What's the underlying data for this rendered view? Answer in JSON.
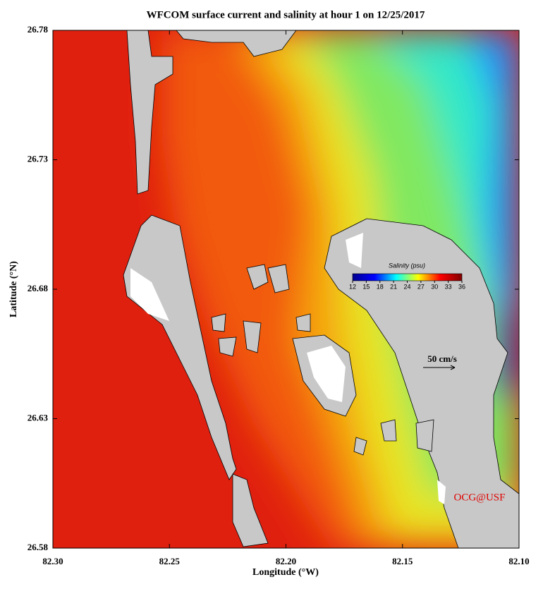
{
  "chart_data": {
    "type": "map",
    "title": "WFCOM surface current and salinity at hour 1 on 12/25/2017",
    "x_label": "Longitude (°W)",
    "y_label": "Latitude (°N)",
    "xlim": [
      82.3,
      82.1
    ],
    "xticks": [
      {
        "value": 82.3,
        "label": "82.30"
      },
      {
        "value": 82.25,
        "label": "82.25"
      },
      {
        "value": 82.2,
        "label": "82.20"
      },
      {
        "value": 82.15,
        "label": "82.15"
      },
      {
        "value": 82.1,
        "label": "82.10"
      }
    ],
    "ylim": [
      26.58,
      26.78
    ],
    "yticks": [
      26.58,
      26.63,
      26.68,
      26.73,
      26.78
    ],
    "colorbar": {
      "title": "Salinity (psu)",
      "lim": [
        12,
        36
      ],
      "ticks": [
        12,
        15,
        18,
        21,
        24,
        27,
        30,
        33,
        36
      ],
      "colors": [
        "#00008f",
        "#0000ff",
        "#00ffff",
        "#ffff00",
        "#ff0000",
        "#800000"
      ]
    },
    "annotations": [
      "50 cm/s",
      "OCG@USF"
    ]
  }
}
